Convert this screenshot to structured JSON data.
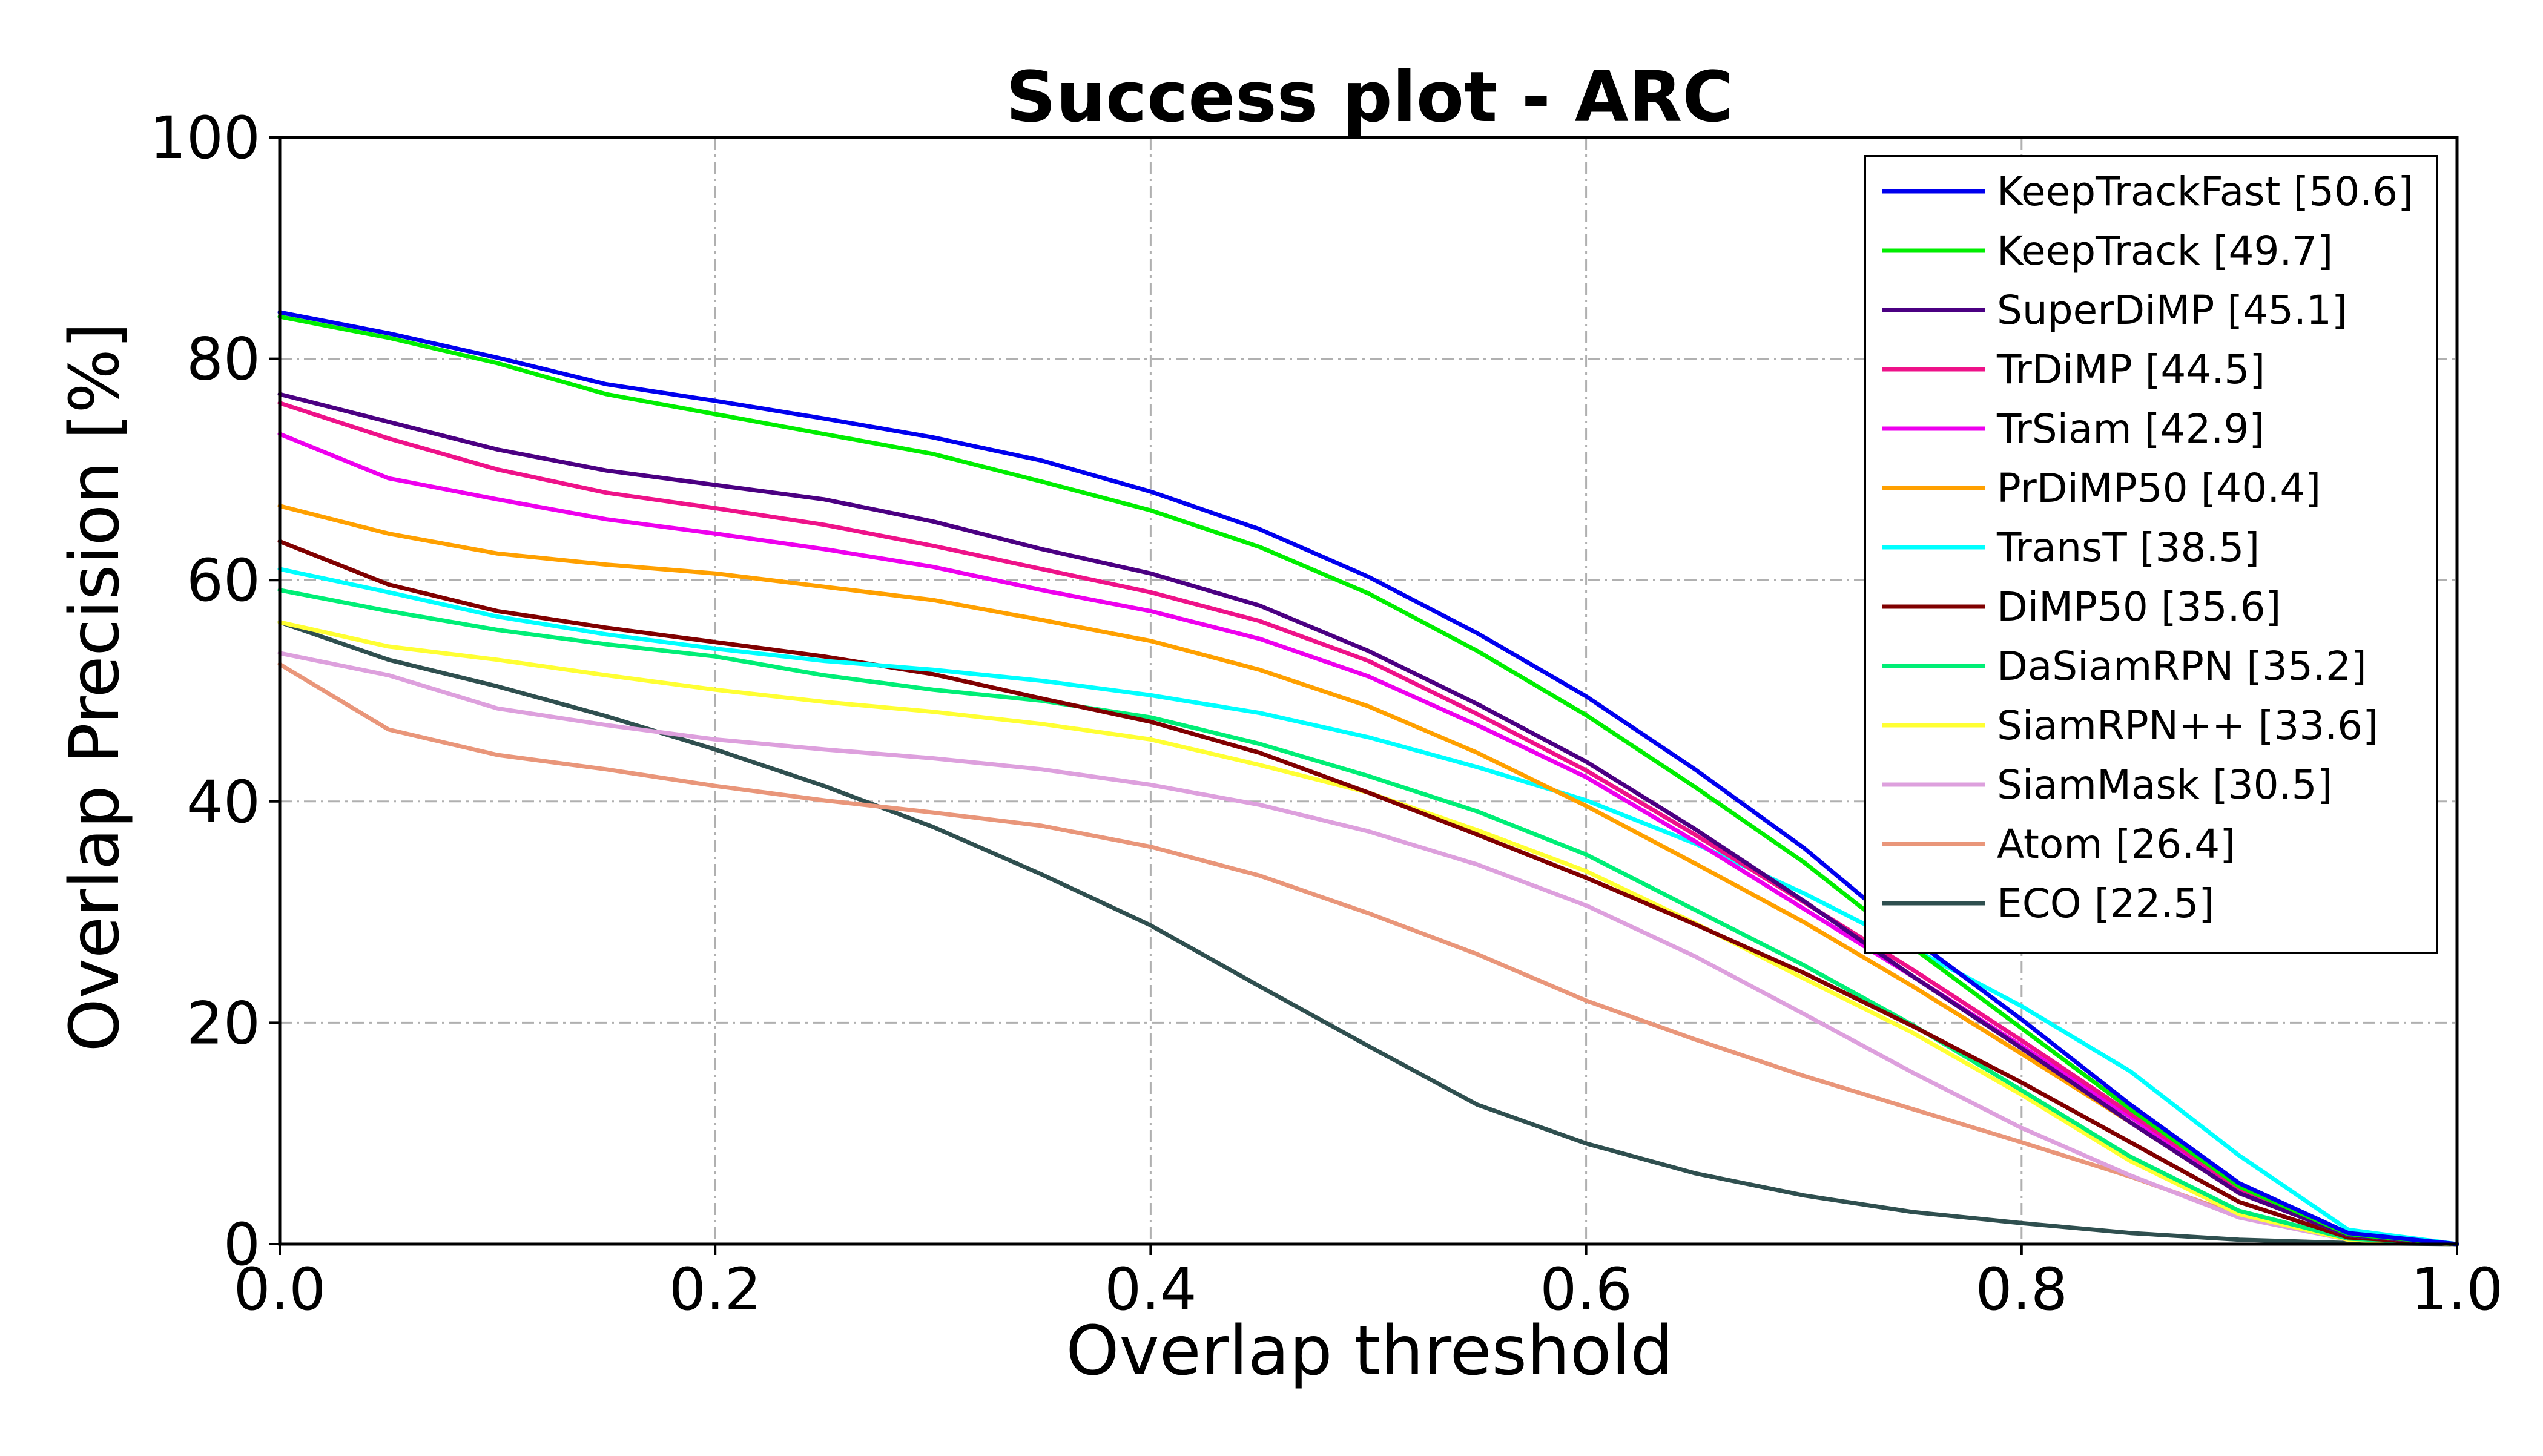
{
  "chart_data": {
    "type": "line",
    "title": "Success plot - ARC",
    "xlabel": "Overlap threshold",
    "ylabel": "Overlap Precision [%]",
    "xlim": [
      0.0,
      1.0
    ],
    "ylim": [
      0,
      100
    ],
    "xticks": [
      0.0,
      0.2,
      0.4,
      0.6,
      0.8,
      1.0
    ],
    "xtick_labels": [
      "0.0",
      "0.2",
      "0.4",
      "0.6",
      "0.8",
      "1.0"
    ],
    "yticks": [
      0,
      20,
      40,
      60,
      80,
      100
    ],
    "ytick_labels": [
      "0",
      "20",
      "40",
      "60",
      "80",
      "100"
    ],
    "grid": true,
    "grid_style": "dash-dot",
    "legend_position": "top-right",
    "x": [
      0.0,
      0.05,
      0.1,
      0.15,
      0.2,
      0.25,
      0.3,
      0.35,
      0.4,
      0.45,
      0.5,
      0.55,
      0.6,
      0.65,
      0.7,
      0.75,
      0.8,
      0.85,
      0.9,
      0.95,
      1.0
    ],
    "series": [
      {
        "name": "KeepTrackFast [50.6]",
        "color": "#0000ee",
        "values": [
          84.2,
          82.3,
          80.1,
          77.7,
          76.2,
          74.6,
          72.9,
          70.8,
          68.0,
          64.6,
          60.3,
          55.2,
          49.5,
          42.9,
          35.8,
          27.6,
          20.3,
          12.6,
          5.5,
          1.0,
          0.0
        ]
      },
      {
        "name": "KeepTrack [49.7]",
        "color": "#00ee00",
        "values": [
          83.8,
          81.9,
          79.6,
          76.8,
          75.0,
          73.2,
          71.4,
          68.9,
          66.3,
          63.0,
          58.8,
          53.6,
          47.8,
          41.3,
          34.5,
          26.8,
          19.5,
          12.2,
          5.2,
          0.9,
          0.0
        ]
      },
      {
        "name": "SuperDiMP [45.1]",
        "color": "#4b0082",
        "values": [
          76.8,
          74.3,
          71.8,
          69.9,
          68.6,
          67.3,
          65.3,
          62.8,
          60.6,
          57.7,
          53.6,
          48.8,
          43.6,
          37.5,
          31.0,
          24.2,
          17.7,
          11.0,
          4.6,
          0.8,
          0.0
        ]
      },
      {
        "name": "TrDiMP [44.5]",
        "color": "#ee1289",
        "values": [
          76.0,
          72.8,
          70.0,
          67.9,
          66.5,
          65.0,
          63.1,
          61.0,
          58.9,
          56.3,
          52.7,
          47.9,
          42.8,
          37.0,
          30.9,
          24.8,
          18.4,
          11.8,
          5.0,
          0.9,
          0.0
        ]
      },
      {
        "name": "TrSiam [42.9]",
        "color": "#ee00ee",
        "values": [
          73.2,
          69.2,
          67.3,
          65.5,
          64.2,
          62.8,
          61.2,
          59.1,
          57.2,
          54.7,
          51.3,
          46.9,
          42.2,
          36.4,
          30.3,
          24.2,
          17.9,
          11.5,
          4.8,
          0.9,
          0.0
        ]
      },
      {
        "name": "PrDiMP50 [40.4]",
        "color": "#ffa000",
        "values": [
          66.7,
          64.2,
          62.4,
          61.4,
          60.6,
          59.4,
          58.2,
          56.4,
          54.5,
          51.9,
          48.6,
          44.4,
          39.6,
          34.4,
          29.1,
          23.3,
          17.2,
          11.0,
          4.6,
          0.8,
          0.0
        ]
      },
      {
        "name": "TransT [38.5]",
        "color": "#00ffff",
        "values": [
          61.0,
          58.9,
          56.7,
          55.1,
          53.8,
          52.7,
          51.9,
          50.9,
          49.6,
          48.0,
          45.8,
          43.1,
          40.1,
          36.2,
          31.7,
          26.7,
          21.5,
          15.6,
          8.0,
          1.3,
          0.0
        ]
      },
      {
        "name": "DiMP50 [35.6]",
        "color": "#800000",
        "values": [
          63.5,
          59.6,
          57.2,
          55.7,
          54.4,
          53.1,
          51.5,
          49.3,
          47.2,
          44.4,
          40.8,
          37.0,
          33.1,
          28.9,
          24.5,
          19.7,
          14.6,
          9.2,
          3.8,
          0.6,
          0.0
        ]
      },
      {
        "name": "DaSiamRPN [35.2]",
        "color": "#00ee76",
        "values": [
          59.1,
          57.2,
          55.5,
          54.2,
          53.1,
          51.4,
          50.1,
          49.1,
          47.6,
          45.2,
          42.3,
          39.1,
          35.2,
          30.2,
          25.2,
          19.8,
          13.9,
          7.9,
          3.0,
          0.5,
          0.0
        ]
      },
      {
        "name": "SiamRPN++ [33.6]",
        "color": "#ffff33",
        "values": [
          56.2,
          54.0,
          52.8,
          51.4,
          50.1,
          49.0,
          48.1,
          47.0,
          45.6,
          43.3,
          40.8,
          37.4,
          33.7,
          29.0,
          24.0,
          19.1,
          13.5,
          7.5,
          2.7,
          0.4,
          0.0
        ]
      },
      {
        "name": "SiamMask [30.5]",
        "color": "#dda0dd",
        "values": [
          53.4,
          51.4,
          48.4,
          46.9,
          45.6,
          44.7,
          43.9,
          42.9,
          41.5,
          39.7,
          37.3,
          34.3,
          30.6,
          26.0,
          20.8,
          15.5,
          10.5,
          6.2,
          2.4,
          0.4,
          0.0
        ]
      },
      {
        "name": "Atom [26.4]",
        "color": "#e9967a",
        "values": [
          52.4,
          46.5,
          44.2,
          42.9,
          41.4,
          40.1,
          39.0,
          37.8,
          35.9,
          33.3,
          29.9,
          26.2,
          22.0,
          18.5,
          15.2,
          12.2,
          9.2,
          6.1,
          2.6,
          0.4,
          0.0
        ]
      },
      {
        "name": "ECO [22.5]",
        "color": "#2f4f4f",
        "values": [
          56.2,
          52.8,
          50.4,
          47.7,
          44.7,
          41.4,
          37.7,
          33.4,
          28.8,
          23.3,
          17.9,
          12.6,
          9.1,
          6.4,
          4.4,
          2.9,
          1.9,
          1.0,
          0.4,
          0.1,
          0.0
        ]
      }
    ]
  }
}
